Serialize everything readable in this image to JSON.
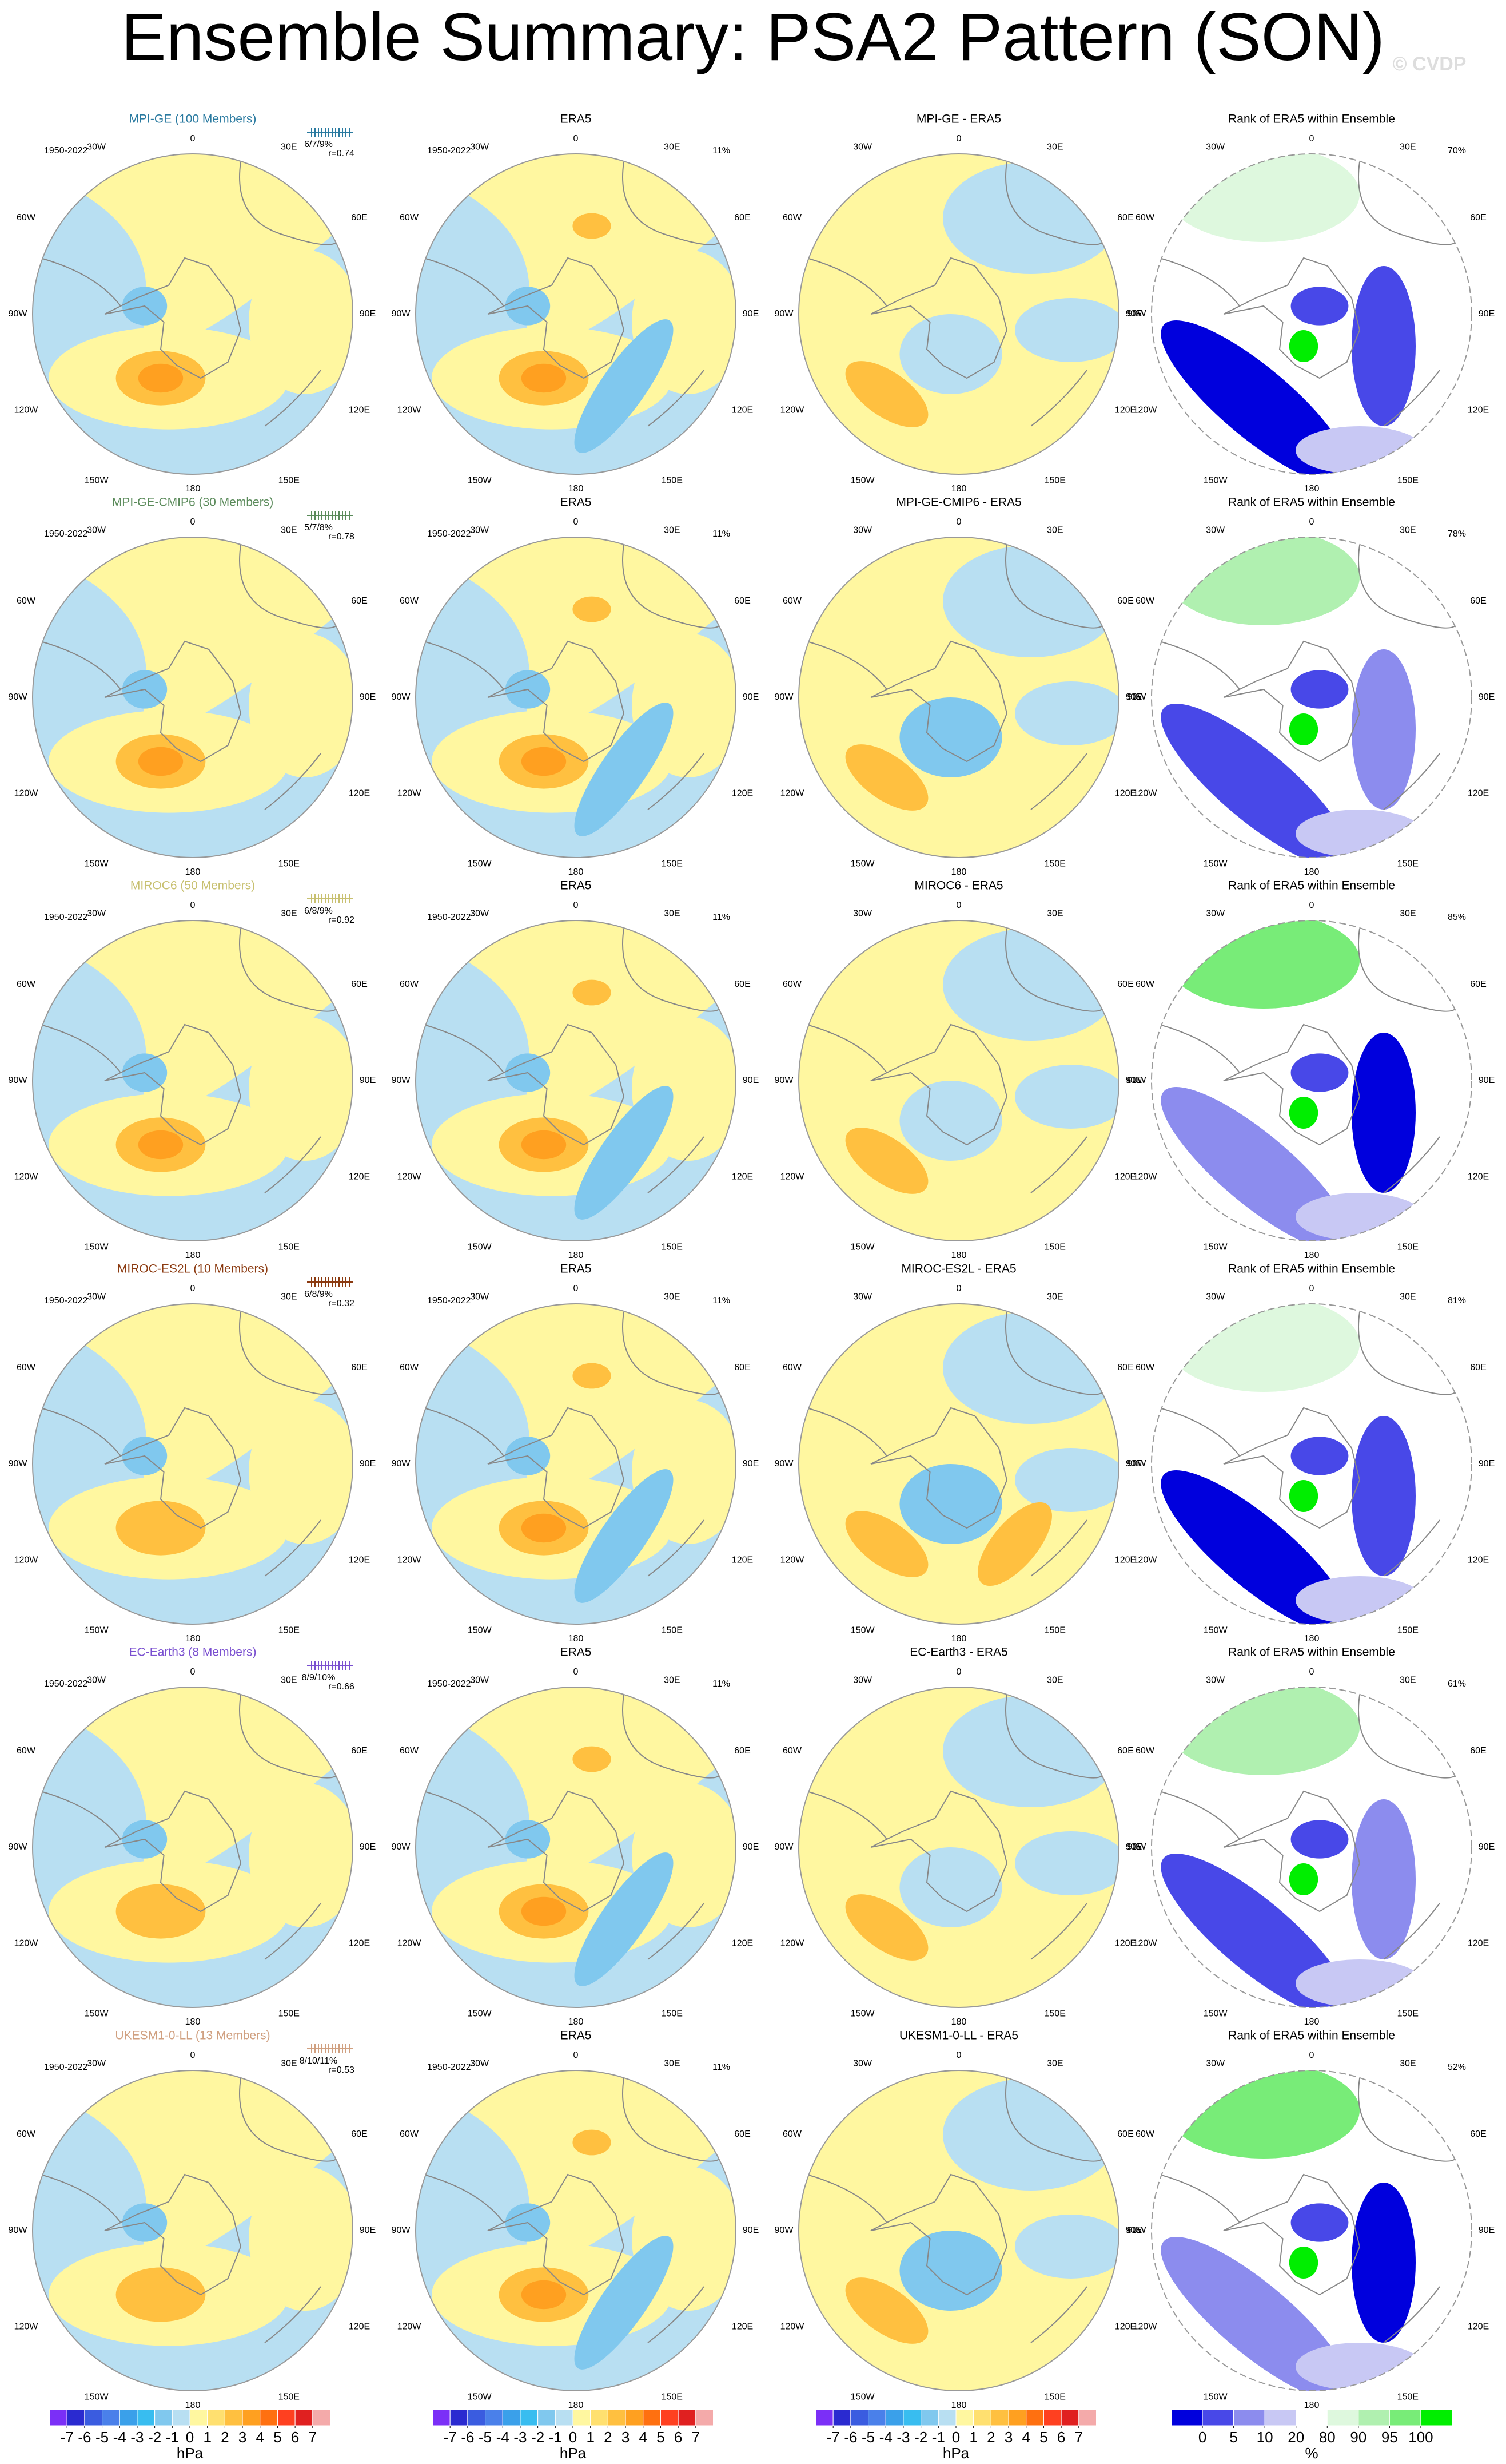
{
  "title": "Ensemble Summary: PSA2 Pattern (SON)",
  "watermark": "© CVDP",
  "longitude_labels": [
    "0",
    "30E",
    "60E",
    "90E",
    "120E",
    "150E",
    "180",
    "150W",
    "120W",
    "90W",
    "60W",
    "30W"
  ],
  "rows": [
    {
      "model": "MPI-GE (100 Members)",
      "model_color": "#2a7aa0",
      "stats": "6/7/9%",
      "r": "r=0.74",
      "period": "1950-2022",
      "obs_title": "ERA5",
      "obs_period": "1950-2022",
      "obs_pct": "11%",
      "diff_title": "MPI-GE - ERA5",
      "rank_title": "Rank of ERA5 within Ensemble",
      "rank_pct": "70%"
    },
    {
      "model": "MPI-GE-CMIP6 (30 Members)",
      "model_color": "#5a8a5a",
      "stats": "5/7/8%",
      "r": "r=0.78",
      "period": "1950-2022",
      "obs_title": "ERA5",
      "obs_period": "1950-2022",
      "obs_pct": "11%",
      "diff_title": "MPI-GE-CMIP6 - ERA5",
      "rank_title": "Rank of ERA5 within Ensemble",
      "rank_pct": "78%"
    },
    {
      "model": "MIROC6 (50 Members)",
      "model_color": "#c8c070",
      "stats": "6/8/9%",
      "r": "r=0.92",
      "period": "1950-2022",
      "obs_title": "ERA5",
      "obs_period": "1950-2022",
      "obs_pct": "11%",
      "diff_title": "MIROC6 - ERA5",
      "rank_title": "Rank of ERA5 within Ensemble",
      "rank_pct": "85%"
    },
    {
      "model": "MIROC-ES2L (10 Members)",
      "model_color": "#8b3a10",
      "stats": "6/8/9%",
      "r": "r=0.32",
      "period": "1950-2022",
      "obs_title": "ERA5",
      "obs_period": "1950-2022",
      "obs_pct": "11%",
      "diff_title": "MIROC-ES2L - ERA5",
      "rank_title": "Rank of ERA5 within Ensemble",
      "rank_pct": "81%"
    },
    {
      "model": "EC-Earth3 (8 Members)",
      "model_color": "#7a50d0",
      "stats": "8/9/10%",
      "r": "r=0.66",
      "period": "1950-2022",
      "obs_title": "ERA5",
      "obs_period": "1950-2022",
      "obs_pct": "11%",
      "diff_title": "EC-Earth3 - ERA5",
      "rank_title": "Rank of ERA5 within Ensemble",
      "rank_pct": "61%"
    },
    {
      "model": "UKESM1-0-LL (13 Members)",
      "model_color": "#d0a080",
      "stats": "8/10/11%",
      "r": "r=0.53",
      "period": "1950-2022",
      "obs_title": "ERA5",
      "obs_period": "1950-2022",
      "obs_pct": "11%",
      "diff_title": "UKESM1-0-LL - ERA5",
      "rank_title": "Rank of ERA5 within Ensemble",
      "rank_pct": "52%"
    }
  ],
  "colorbar_hpa": {
    "ticks": [
      -7,
      -6,
      -5,
      -4,
      -3,
      -2,
      -1,
      0,
      1,
      2,
      3,
      4,
      5,
      6,
      7
    ],
    "unit": "hPa",
    "colors": [
      "#7b2ff7",
      "#2a2ad0",
      "#3a5ce0",
      "#4a80ea",
      "#3aa0ea",
      "#38bdf0",
      "#80c8ee",
      "#b8dff2",
      "#fff7a0",
      "#ffe070",
      "#ffc040",
      "#ffa020",
      "#ff7010",
      "#ff4020",
      "#e02020",
      "#f4aaaa"
    ]
  },
  "colorbar_rank": {
    "ticks": [
      0,
      5,
      10,
      20,
      80,
      90,
      95,
      100
    ],
    "unit": "%",
    "colors": [
      "#0000dd",
      "#4848e8",
      "#8c8cee",
      "#c8c8f4",
      "#ffffff",
      "#def8de",
      "#b0f0b0",
      "#78ec78",
      "#00ee00"
    ]
  }
}
